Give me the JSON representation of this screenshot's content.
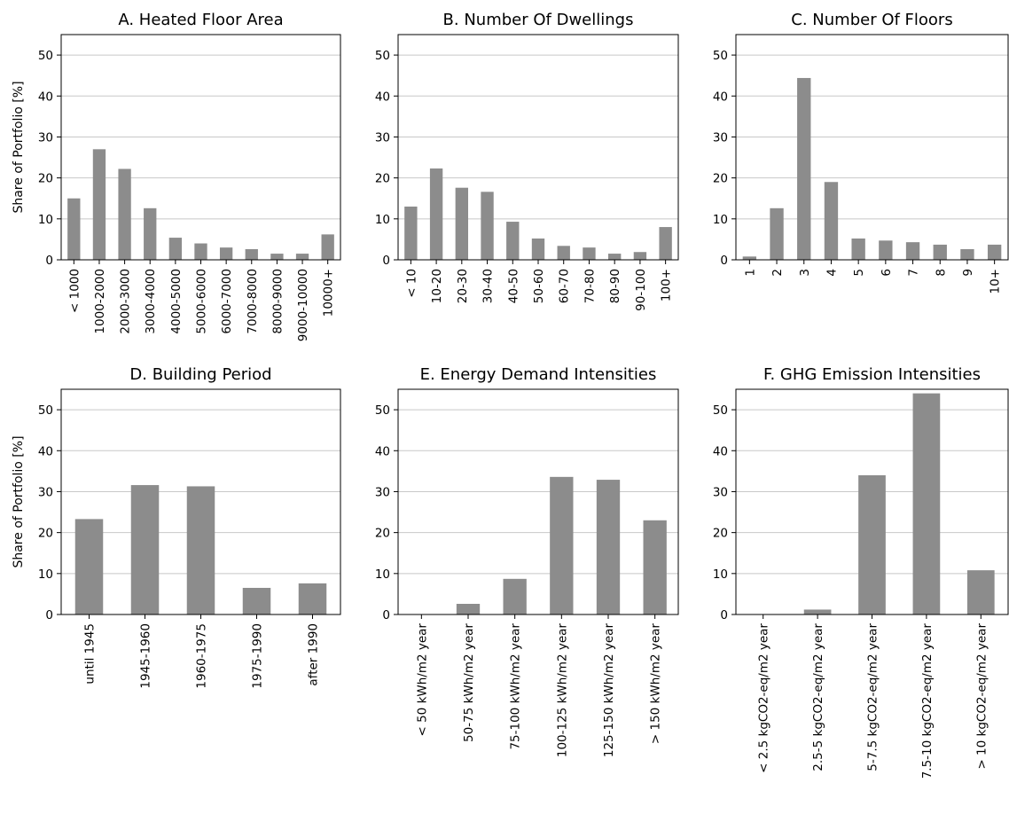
{
  "chart_data": [
    {
      "type": "bar",
      "title": "A. Heated Floor Area",
      "ylabel": "Share of Portfolio [%]",
      "ylim": [
        0,
        55
      ],
      "yticks": [
        0,
        10,
        20,
        30,
        40,
        50
      ],
      "grid": true,
      "color": "#8c8c8c",
      "categories": [
        "< 1000",
        "1000-2000",
        "2000-3000",
        "3000-4000",
        "4000-5000",
        "5000-6000",
        "6000-7000",
        "7000-8000",
        "8000-9000",
        "9000-10000",
        "10000+"
      ],
      "values": [
        15,
        27,
        22.2,
        12.6,
        5.4,
        4,
        3,
        2.6,
        1.5,
        1.5,
        6.2
      ]
    },
    {
      "type": "bar",
      "title": "B. Number Of Dwellings",
      "ylabel": "",
      "ylim": [
        0,
        55
      ],
      "yticks": [
        0,
        10,
        20,
        30,
        40,
        50
      ],
      "grid": true,
      "color": "#8c8c8c",
      "categories": [
        "< 10",
        "10-20",
        "20-30",
        "30-40",
        "40-50",
        "50-60",
        "60-70",
        "70-80",
        "80-90",
        "90-100",
        "100+"
      ],
      "values": [
        13,
        22.3,
        17.6,
        16.6,
        9.3,
        5.2,
        3.4,
        3,
        1.5,
        1.9,
        8
      ]
    },
    {
      "type": "bar",
      "title": "C. Number Of Floors",
      "ylabel": "",
      "ylim": [
        0,
        55
      ],
      "yticks": [
        0,
        10,
        20,
        30,
        40,
        50
      ],
      "grid": true,
      "color": "#8c8c8c",
      "categories": [
        "1",
        "2",
        "3",
        "4",
        "5",
        "6",
        "7",
        "8",
        "9",
        "10+"
      ],
      "values": [
        0.8,
        12.6,
        44.4,
        19,
        5.2,
        4.7,
        4.3,
        3.7,
        2.6,
        3.7
      ]
    },
    {
      "type": "bar",
      "title": "D. Building Period",
      "ylabel": "Share of Portfolio [%]",
      "ylim": [
        0,
        55
      ],
      "yticks": [
        0,
        10,
        20,
        30,
        40,
        50
      ],
      "grid": true,
      "color": "#8c8c8c",
      "categories": [
        "until 1945",
        "1945-1960",
        "1960-1975",
        "1975-1990",
        "after 1990"
      ],
      "values": [
        23.3,
        31.6,
        31.3,
        6.5,
        7.6
      ]
    },
    {
      "type": "bar",
      "title": "E. Energy Demand Intensities",
      "ylabel": "",
      "ylim": [
        0,
        55
      ],
      "yticks": [
        0,
        10,
        20,
        30,
        40,
        50
      ],
      "grid": true,
      "color": "#8c8c8c",
      "categories": [
        "< 50 kWh/m2 year",
        "50-75 kWh/m2 year",
        "75-100 kWh/m2 year",
        "100-125 kWh/m2 year",
        "125-150 kWh/m2 year",
        "> 150 kWh/m2 year"
      ],
      "values": [
        0,
        2.6,
        8.7,
        33.6,
        32.9,
        23
      ]
    },
    {
      "type": "bar",
      "title": "F. GHG Emission Intensities",
      "ylabel": "",
      "ylim": [
        0,
        55
      ],
      "yticks": [
        0,
        10,
        20,
        30,
        40,
        50
      ],
      "grid": true,
      "color": "#8c8c8c",
      "categories": [
        "< 2.5 kgCO2-eq/m2 year",
        "2.5-5 kgCO2-eq/m2 year",
        "5-7.5 kgCO2-eq/m2 year",
        "7.5-10 kgCO2-eq/m2 year",
        "> 10 kgCO2-eq/m2 year"
      ],
      "values": [
        0,
        1.2,
        34,
        54,
        10.8
      ]
    }
  ]
}
